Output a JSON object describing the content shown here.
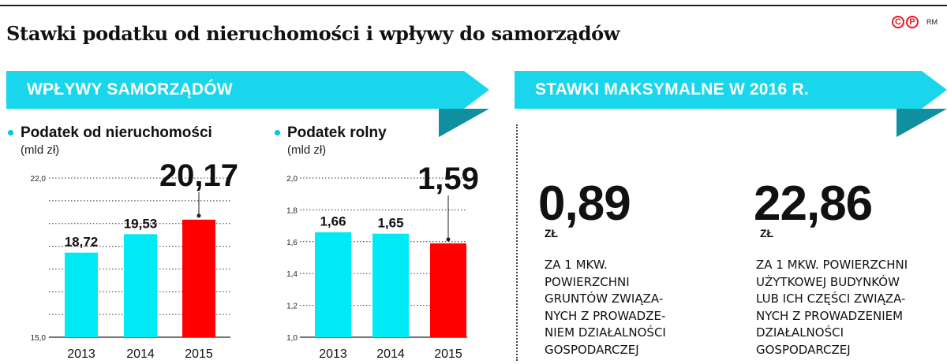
{
  "title": "Stawki podatku od nieruchomości i wpływy do samorządów",
  "credit": {
    "mark": "CP",
    "author": "RM"
  },
  "colors": {
    "cyan": "#00eaf6",
    "red": "#ff0000",
    "banner": "#19d6ec",
    "banner_dark": "#0f8fa0"
  },
  "left_section": {
    "banner": "WPŁYWY SAMORZĄDÓW"
  },
  "right_section": {
    "banner": "STAWKI MAKSYMALNE W 2016 R.",
    "rates": [
      {
        "value": "0,89",
        "unit": "ZŁ",
        "desc_lines": [
          "ZA 1 MKW.",
          "POWIERZCHNI",
          "GRUNTÓW ZWIĄZA-",
          "NYCH Z PROWADZE-",
          "NIEM DZIAŁALNOŚCI",
          "GOSPODARCZEJ"
        ]
      },
      {
        "value": "22,86",
        "unit": "ZŁ",
        "desc_lines": [
          "ZA 1 MKW. POWIERZCHNI",
          "UŻYTKOWEJ BUDYNKÓW",
          "LUB ICH CZĘŚCI ZWIĄZA-",
          "NYCH Z PROWADZENIEM",
          "DZIAŁALNOŚCI",
          "GOSPODARCZEJ"
        ]
      }
    ]
  },
  "chart_data": [
    {
      "type": "bar",
      "title": "Podatek od nieruchomości",
      "unit": "(mld zł)",
      "categories": [
        "2013",
        "2014",
        "2015"
      ],
      "values": [
        18.72,
        19.53,
        20.17
      ],
      "value_labels": [
        "18,72",
        "19,53",
        "20,17"
      ],
      "ylim": [
        15.0,
        22.0
      ],
      "yticks": [
        15.0,
        16.0,
        17.0,
        18.0,
        19.0,
        20.0,
        21.0,
        22.0
      ],
      "ytick_labels": [
        "15,0",
        "",
        "",
        "",
        "",
        "",
        "",
        "22,0"
      ],
      "highlight_index": 2,
      "grid": true
    },
    {
      "type": "bar",
      "title": "Podatek rolny",
      "unit": "(mld zł)",
      "categories": [
        "2013",
        "2014",
        "2015"
      ],
      "values": [
        1.66,
        1.65,
        1.59
      ],
      "value_labels": [
        "1,66",
        "1,65",
        "1,59"
      ],
      "ylim": [
        1.0,
        2.0
      ],
      "yticks": [
        1.0,
        1.2,
        1.4,
        1.6,
        1.8,
        2.0
      ],
      "ytick_labels": [
        "1,0",
        "1,2",
        "1,4",
        "1,6",
        "1,8",
        "2,0"
      ],
      "highlight_index": 2,
      "grid": true
    }
  ]
}
